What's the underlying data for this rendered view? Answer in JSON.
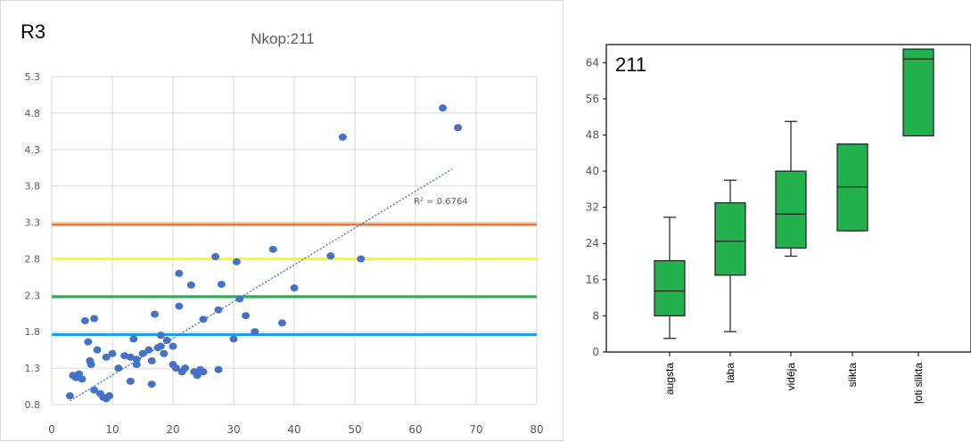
{
  "chart_data": [
    {
      "type": "scatter",
      "panel_label": "R3",
      "title": "Nkop:211",
      "xlabel": "",
      "ylabel": "",
      "xlim": [
        0,
        80
      ],
      "ylim": [
        0.8,
        5.3
      ],
      "x_ticks": [
        0,
        10,
        20,
        30,
        40,
        50,
        60,
        70,
        80
      ],
      "y_ticks": [
        0.8,
        1.3,
        1.8,
        2.3,
        2.8,
        3.3,
        3.8,
        4.3,
        4.8,
        5.3
      ],
      "y_tick_labels": [
        "0.8",
        "1.3",
        "1.8",
        "2.3",
        "2.8",
        "3.3",
        "3.8",
        "4.3",
        "4.8",
        "5.3"
      ],
      "grid": true,
      "marker_color": "#4472c4",
      "points": [
        [
          3,
          0.92
        ],
        [
          3.5,
          1.2
        ],
        [
          4,
          1.17
        ],
        [
          4.5,
          1.22
        ],
        [
          5,
          1.15
        ],
        [
          5.5,
          1.95
        ],
        [
          6,
          1.66
        ],
        [
          6.3,
          1.4
        ],
        [
          6.5,
          1.35
        ],
        [
          7,
          1.98
        ],
        [
          7,
          1.0
        ],
        [
          7.5,
          1.55
        ],
        [
          8,
          0.95
        ],
        [
          8.5,
          0.9
        ],
        [
          9,
          1.45
        ],
        [
          9,
          0.88
        ],
        [
          9.5,
          0.92
        ],
        [
          10,
          1.5
        ],
        [
          11,
          1.3
        ],
        [
          12,
          1.47
        ],
        [
          13,
          1.45
        ],
        [
          13,
          1.12
        ],
        [
          13.5,
          1.7
        ],
        [
          14,
          1.35
        ],
        [
          14,
          1.42
        ],
        [
          15,
          1.5
        ],
        [
          16,
          1.55
        ],
        [
          16.5,
          1.4
        ],
        [
          16.5,
          1.08
        ],
        [
          17,
          2.04
        ],
        [
          17.5,
          1.58
        ],
        [
          18,
          1.75
        ],
        [
          18,
          1.6
        ],
        [
          18.5,
          1.5
        ],
        [
          19,
          1.68
        ],
        [
          20,
          1.35
        ],
        [
          20,
          1.6
        ],
        [
          20.5,
          1.3
        ],
        [
          21,
          2.15
        ],
        [
          21,
          2.6
        ],
        [
          21.5,
          1.25
        ],
        [
          22,
          1.3
        ],
        [
          23,
          2.44
        ],
        [
          23.5,
          1.25
        ],
        [
          24,
          1.2
        ],
        [
          24.5,
          1.28
        ],
        [
          25,
          1.97
        ],
        [
          25,
          1.25
        ],
        [
          27,
          2.83
        ],
        [
          27.5,
          2.1
        ],
        [
          27.5,
          1.28
        ],
        [
          28,
          2.45
        ],
        [
          30,
          1.7
        ],
        [
          30.5,
          2.76
        ],
        [
          31,
          2.25
        ],
        [
          32,
          2.02
        ],
        [
          33.5,
          1.8
        ],
        [
          36.5,
          2.93
        ],
        [
          38,
          1.92
        ],
        [
          40,
          2.4
        ],
        [
          46,
          2.84
        ],
        [
          48,
          4.47
        ],
        [
          51,
          2.8
        ],
        [
          64.5,
          4.87
        ],
        [
          67,
          4.6
        ]
      ],
      "trendline": {
        "from": [
          3,
          0.85
        ],
        "to": [
          66,
          4.03
        ],
        "style": "dotted",
        "color": "#4472c4",
        "label": "R² = 0.6764"
      },
      "reference_lines": [
        {
          "y": 3.27,
          "color": "#ed7d31"
        },
        {
          "y": 2.8,
          "color": "#ffff00"
        },
        {
          "y": 2.28,
          "color": "#22b14c"
        },
        {
          "y": 1.76,
          "color": "#1ba1e2"
        }
      ]
    },
    {
      "type": "box",
      "panel_label": "211",
      "title": "",
      "xlabel": "",
      "ylabel": "",
      "ylim": [
        0,
        68
      ],
      "y_ticks": [
        0,
        8,
        16,
        24,
        32,
        40,
        48,
        56,
        64
      ],
      "y_tick_labels": [
        "0",
        "8",
        "16",
        "24",
        "32",
        "40",
        "48",
        "56",
        "64"
      ],
      "categories": [
        "augsta",
        "laba",
        "vidēja",
        "slikta",
        "ļoti slikta"
      ],
      "boxes": [
        {
          "min": 3,
          "q1": 8,
          "median": 13.5,
          "q3": 20.2,
          "max": 29.8
        },
        {
          "min": 4.5,
          "q1": 17,
          "median": 24.5,
          "q3": 33,
          "max": 38
        },
        {
          "min": 21.2,
          "q1": 23,
          "median": 30.5,
          "q3": 40,
          "max": 51
        },
        {
          "min": 26.8,
          "q1": 26.8,
          "median": 36.5,
          "q3": 46,
          "max": 46
        },
        {
          "min": 47.8,
          "q1": 47.8,
          "median": 64.8,
          "q3": 67,
          "max": 67
        }
      ],
      "box_color": "#22b14c",
      "box_edge_color": "#1e1e1e"
    }
  ]
}
